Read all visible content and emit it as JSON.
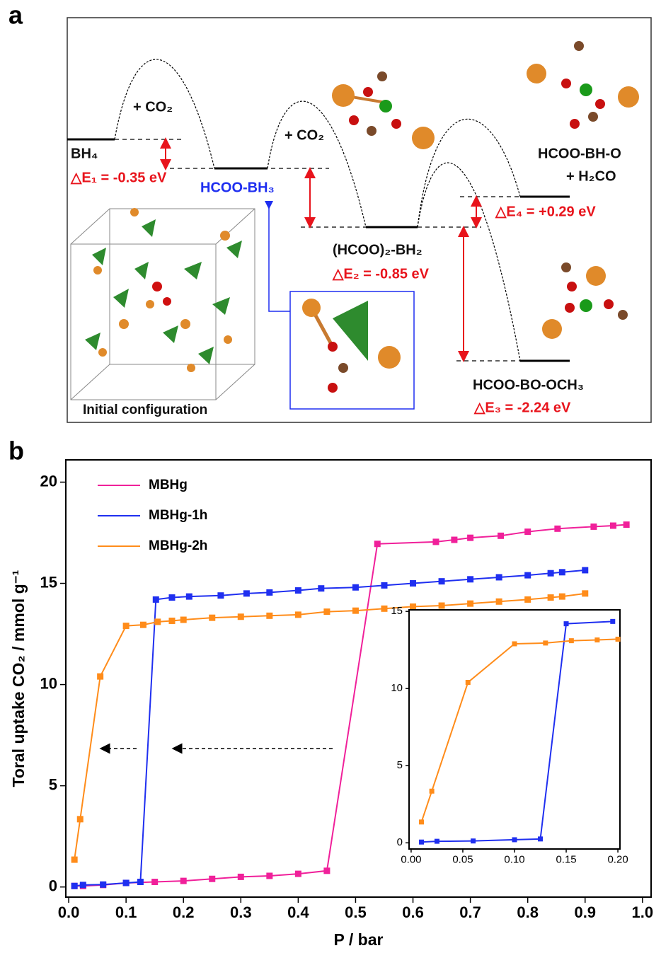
{
  "panel_a": {
    "label": "a",
    "co2_1": "+ CO₂",
    "co2_2": "+ CO₂",
    "bh4": "BH₄",
    "de1": "△E₁ = -0.35 eV",
    "hcoo_bh3": "HCOO-BH₃",
    "hcoo2_bh2": "(HCOO)₂-BH₂",
    "de2": "△E₂ = -0.85 eV",
    "hcoo_bh_o": "HCOO-BH-O",
    "h2co": "+ H₂CO",
    "de4": "△E₄ = +0.29 eV",
    "hcoo_bo_och3": "HCOO-BO-OCH₃",
    "de3": "△E₃ = -2.24 eV",
    "initial": "Initial configuration"
  },
  "panel_b": {
    "label": "b"
  },
  "chart_data": [
    {
      "type": "line",
      "x_label": "P / bar",
      "y_label": "Toral uptake CO₂ / mmol g⁻¹",
      "xlim": [
        -0.005,
        1.015
      ],
      "ylim": [
        -0.5,
        21.1
      ],
      "xticks": [
        {
          "value": 0,
          "label": "0.0"
        },
        0.1,
        0.2,
        0.3,
        0.4,
        0.5,
        0.6,
        0.7,
        0.8,
        0.9,
        {
          "value": 1,
          "label": "1.0"
        }
      ],
      "yticks": [
        0,
        5,
        10,
        15,
        20
      ],
      "legend": "upper left",
      "series": [
        {
          "name": "MBHg",
          "color": "#f0209a",
          "x": [
            0.01,
            0.025,
            0.06,
            0.1,
            0.15,
            0.2,
            0.25,
            0.3,
            0.35,
            0.4,
            0.45,
            0.538,
            0.64,
            0.672,
            0.7,
            0.753,
            0.8,
            0.852,
            0.915,
            0.949,
            0.972
          ],
          "values": [
            0.05,
            0.05,
            0.1,
            0.2,
            0.25,
            0.3,
            0.4,
            0.5,
            0.55,
            0.65,
            0.8,
            16.95,
            17.05,
            17.15,
            17.25,
            17.35,
            17.55,
            17.7,
            17.8,
            17.85,
            17.9
          ]
        },
        {
          "name": "MBHg-1h",
          "color": "#1f2ff0",
          "x": [
            0.01,
            0.025,
            0.06,
            0.1,
            0.125,
            0.152,
            0.18,
            0.21,
            0.265,
            0.31,
            0.35,
            0.4,
            0.44,
            0.5,
            0.55,
            0.6,
            0.65,
            0.7,
            0.75,
            0.8,
            0.84,
            0.86,
            0.9
          ],
          "values": [
            0.05,
            0.1,
            0.12,
            0.2,
            0.25,
            14.2,
            14.3,
            14.35,
            14.4,
            14.5,
            14.55,
            14.65,
            14.75,
            14.8,
            14.9,
            15.0,
            15.1,
            15.2,
            15.3,
            15.4,
            15.5,
            15.55,
            15.65
          ]
        },
        {
          "name": "MBHg-2h",
          "color": "#ff8c1a",
          "x": [
            0.01,
            0.02,
            0.055,
            0.1,
            0.13,
            0.155,
            0.18,
            0.2,
            0.25,
            0.3,
            0.35,
            0.4,
            0.45,
            0.5,
            0.55,
            0.6,
            0.65,
            0.7,
            0.75,
            0.8,
            0.84,
            0.86,
            0.9
          ],
          "values": [
            1.35,
            3.35,
            10.4,
            12.9,
            12.95,
            13.1,
            13.15,
            13.2,
            13.3,
            13.35,
            13.4,
            13.45,
            13.6,
            13.65,
            13.75,
            13.85,
            13.9,
            14.0,
            14.1,
            14.2,
            14.3,
            14.35,
            14.5
          ]
        }
      ]
    },
    {
      "type": "line",
      "xlim": [
        -0.002,
        0.202
      ],
      "ylim": [
        -0.4,
        15.1
      ],
      "xticks": [
        {
          "value": 0,
          "label": "0.00"
        },
        {
          "value": 0.05,
          "label": "0.05"
        },
        {
          "value": 0.1,
          "label": "0.10"
        },
        {
          "value": 0.15,
          "label": "0.15"
        },
        {
          "value": 0.2,
          "label": "0.20"
        }
      ],
      "yticks": [
        0,
        5,
        10,
        15
      ],
      "series": [
        {
          "color": "#1f2ff0",
          "x": [
            0.01,
            0.025,
            0.06,
            0.1,
            0.125,
            0.15,
            0.195
          ],
          "values": [
            0.05,
            0.1,
            0.12,
            0.2,
            0.25,
            14.2,
            14.35
          ]
        },
        {
          "color": "#ff8c1a",
          "x": [
            0.01,
            0.02,
            0.055,
            0.1,
            0.13,
            0.155,
            0.18,
            0.2
          ],
          "values": [
            1.35,
            3.35,
            10.4,
            12.9,
            12.95,
            13.1,
            13.15,
            13.2
          ]
        }
      ]
    }
  ]
}
